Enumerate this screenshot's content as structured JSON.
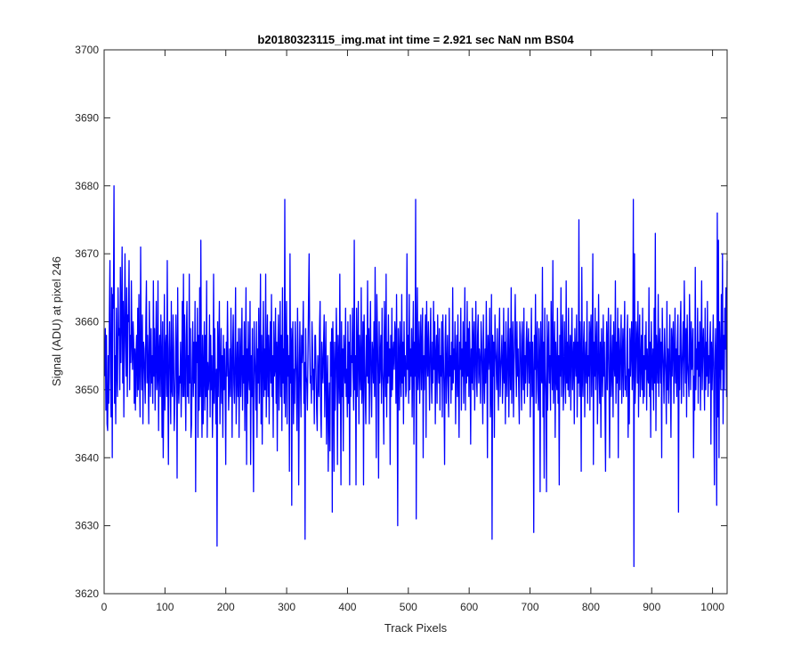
{
  "chart_data": {
    "type": "line",
    "title": "b20180323115_img.mat int time = 2.921 sec  NaN nm BS04",
    "xlabel": "Track Pixels",
    "ylabel": "Signal (ADU) at pixel 246",
    "xlim": [
      0,
      1024
    ],
    "ylim": [
      3620,
      3700
    ],
    "xticks": [
      0,
      100,
      200,
      300,
      400,
      500,
      600,
      700,
      800,
      900,
      1000
    ],
    "yticks": [
      3620,
      3630,
      3640,
      3650,
      3660,
      3670,
      3680,
      3690,
      3700
    ],
    "grid": false,
    "legend": "none",
    "series": [
      {
        "color": "#0000ff",
        "x_start": 1,
        "x_step": 1,
        "values": [
          3652,
          3659,
          3647,
          3658,
          3645,
          3644,
          3655,
          3648,
          3661,
          3669,
          3652,
          3646,
          3665,
          3640,
          3664,
          3662,
          3680,
          3648,
          3655,
          3645,
          3662,
          3653,
          3649,
          3665,
          3658,
          3659,
          3650,
          3668,
          3654,
          3661,
          3671,
          3651,
          3663,
          3646,
          3659,
          3670,
          3657,
          3652,
          3665,
          3649,
          3661,
          3660,
          3669,
          3650,
          3658,
          3654,
          3666,
          3657,
          3653,
          3660,
          3657,
          3648,
          3656,
          3647,
          3655,
          3658,
          3649,
          3662,
          3650,
          3664,
          3653,
          3646,
          3671,
          3655,
          3650,
          3661,
          3645,
          3657,
          3656,
          3652,
          3648,
          3660,
          3666,
          3651,
          3658,
          3653,
          3645,
          3663,
          3655,
          3649,
          3659,
          3651,
          3655,
          3648,
          3666,
          3652,
          3659,
          3647,
          3654,
          3663,
          3650,
          3652,
          3666,
          3644,
          3655,
          3658,
          3649,
          3661,
          3655,
          3643,
          3660,
          3640,
          3650,
          3664,
          3647,
          3656,
          3658,
          3649,
          3669,
          3651,
          3639,
          3656,
          3660,
          3652,
          3645,
          3663,
          3650,
          3649,
          3661,
          3656,
          3644,
          3648,
          3652,
          3661,
          3655,
          3637,
          3665,
          3651,
          3648,
          3652,
          3651,
          3657,
          3646,
          3652,
          3663,
          3649,
          3667,
          3649,
          3661,
          3652,
          3644,
          3658,
          3663,
          3649,
          3655,
          3648,
          3667,
          3651,
          3659,
          3643,
          3645,
          3654,
          3660,
          3649,
          3657,
          3651,
          3663,
          3635,
          3657,
          3654,
          3662,
          3643,
          3658,
          3647,
          3665,
          3649,
          3672,
          3651,
          3643,
          3658,
          3645,
          3653,
          3660,
          3647,
          3658,
          3649,
          3666,
          3643,
          3654,
          3650,
          3652,
          3661,
          3646,
          3658,
          3650,
          3655,
          3643,
          3649,
          3667,
          3648,
          3659,
          3652,
          3645,
          3653,
          3627,
          3660,
          3649,
          3656,
          3663,
          3645,
          3652,
          3659,
          3648,
          3655,
          3643,
          3658,
          3650,
          3656,
          3651,
          3639,
          3657,
          3652,
          3663,
          3655,
          3647,
          3651,
          3656,
          3649,
          3662,
          3654,
          3643,
          3656,
          3661,
          3651,
          3648,
          3655,
          3665,
          3645,
          3652,
          3657,
          3649,
          3659,
          3643,
          3653,
          3659,
          3649,
          3654,
          3662,
          3647,
          3655,
          3651,
          3660,
          3644,
          3654,
          3665,
          3639,
          3656,
          3648,
          3660,
          3652,
          3650,
          3663,
          3639,
          3655,
          3649,
          3659,
          3647,
          3635,
          3660,
          3655,
          3652,
          3647,
          3660,
          3643,
          3656,
          3651,
          3662,
          3648,
          3655,
          3667,
          3645,
          3658,
          3642,
          3654,
          3663,
          3649,
          3656,
          3650,
          3667,
          3646,
          3654,
          3661,
          3649,
          3658,
          3645,
          3655,
          3660,
          3651,
          3664,
          3649,
          3655,
          3643,
          3660,
          3652,
          3653,
          3662,
          3648,
          3657,
          3641,
          3656,
          3661,
          3647,
          3654,
          3663,
          3649,
          3658,
          3644,
          3665,
          3651,
          3656,
          3648,
          3678,
          3646,
          3654,
          3663,
          3645,
          3658,
          3652,
          3655,
          3638,
          3670,
          3651,
          3659,
          3633,
          3657,
          3660,
          3645,
          3653,
          3648,
          3660,
          3655,
          3651,
          3644,
          3662,
          3655,
          3636,
          3650,
          3660,
          3652,
          3646,
          3658,
          3654,
          3657,
          3663,
          3648,
          3654,
          3628,
          3659,
          3652,
          3651,
          3647,
          3655,
          3663,
          3670,
          3657,
          3651,
          3652,
          3648,
          3660,
          3656,
          3650,
          3653,
          3645,
          3658,
          3658,
          3652,
          3647,
          3644,
          3655,
          3651,
          3649,
          3659,
          3663,
          3647,
          3643,
          3657,
          3653,
          3651,
          3657,
          3661,
          3646,
          3653,
          3660,
          3642,
          3650,
          3655,
          3638,
          3647,
          3651,
          3641,
          3657,
          3652,
          3659,
          3632,
          3660,
          3653,
          3638,
          3657,
          3647,
          3652,
          3662,
          3655,
          3639,
          3658,
          3654,
          3648,
          3667,
          3652,
          3636,
          3660,
          3649,
          3656,
          3641,
          3658,
          3654,
          3651,
          3662,
          3649,
          3653,
          3646,
          3660,
          3648,
          3657,
          3636,
          3661,
          3649,
          3655,
          3654,
          3662,
          3652,
          3647,
          3672,
          3650,
          3655,
          3636,
          3662,
          3649,
          3656,
          3663,
          3645,
          3658,
          3653,
          3650,
          3665,
          3648,
          3652,
          3660,
          3636,
          3661,
          3655,
          3649,
          3645,
          3658,
          3652,
          3666,
          3651,
          3659,
          3645,
          3656,
          3663,
          3651,
          3646,
          3657,
          3655,
          3651,
          3660,
          3649,
          3668,
          3654,
          3640,
          3664,
          3658,
          3652,
          3637,
          3660,
          3651,
          3655,
          3658,
          3648,
          3662,
          3653,
          3650,
          3642,
          3663,
          3655,
          3649,
          3667,
          3646,
          3657,
          3651,
          3661,
          3652,
          3656,
          3639,
          3658,
          3649,
          3662,
          3650,
          3655,
          3657,
          3653,
          3660,
          3658,
          3648,
          3664,
          3652,
          3630,
          3659,
          3655,
          3647,
          3660,
          3653,
          3649,
          3664,
          3651,
          3657,
          3645,
          3660,
          3652,
          3655,
          3649,
          3650,
          3670,
          3653,
          3658,
          3648,
          3664,
          3650,
          3656,
          3652,
          3659,
          3646,
          3655,
          3663,
          3642,
          3657,
          3652,
          3678,
          3631,
          3657,
          3665,
          3650,
          3653,
          3660,
          3648,
          3655,
          3661,
          3650,
          3656,
          3662,
          3640,
          3655,
          3650,
          3657,
          3661,
          3643,
          3663,
          3655,
          3652,
          3660,
          3654,
          3647,
          3656,
          3662,
          3652,
          3648,
          3657,
          3651,
          3663,
          3653,
          3660,
          3645,
          3655,
          3658,
          3648,
          3661,
          3654,
          3651,
          3659,
          3647,
          3655,
          3652,
          3660,
          3646,
          3661,
          3655,
          3650,
          3639,
          3657,
          3661,
          3648,
          3653,
          3658,
          3651,
          3646,
          3662,
          3652,
          3655,
          3648,
          3657,
          3650,
          3665,
          3651,
          3656,
          3653,
          3660,
          3645,
          3654,
          3658,
          3649,
          3661,
          3651,
          3643,
          3657,
          3653,
          3662,
          3647,
          3656,
          3652,
          3660,
          3648,
          3655,
          3665,
          3647,
          3657,
          3651,
          3663,
          3652,
          3659,
          3649,
          3660,
          3654,
          3642,
          3656,
          3651,
          3662,
          3650,
          3657,
          3660,
          3647,
          3655,
          3663,
          3652,
          3649,
          3658,
          3661,
          3651,
          3656,
          3654,
          3648,
          3660,
          3657,
          3652,
          3645,
          3661,
          3653,
          3648,
          3656,
          3651,
          3663,
          3655,
          3640,
          3658,
          3653,
          3655,
          3662,
          3646,
          3650,
          3664,
          3628,
          3658,
          3652,
          3657,
          3643,
          3661,
          3656,
          3654,
          3650,
          3659,
          3652,
          3647,
          3657,
          3662,
          3649,
          3653,
          3655,
          3658,
          3648,
          3652,
          3662,
          3651,
          3657,
          3645,
          3660,
          3653,
          3649,
          3656,
          3662,
          3646,
          3654,
          3659,
          3650,
          3665,
          3648,
          3656,
          3660,
          3646,
          3653,
          3658,
          3664,
          3655,
          3649,
          3660,
          3652,
          3656,
          3650,
          3645,
          3660,
          3658,
          3652,
          3647,
          3660,
          3654,
          3650,
          3662,
          3648,
          3655,
          3651,
          3657,
          3660,
          3649,
          3656,
          3659,
          3651,
          3657,
          3646,
          3655,
          3662,
          3649,
          3657,
          3652,
          3629,
          3658,
          3653,
          3664,
          3648,
          3656,
          3660,
          3650,
          3647,
          3659,
          3655,
          3635,
          3660,
          3652,
          3651,
          3668,
          3646,
          3657,
          3637,
          3662,
          3653,
          3649,
          3635,
          3661,
          3647,
          3656,
          3660,
          3651,
          3655,
          3647,
          3663,
          3656,
          3650,
          3669,
          3648,
          3654,
          3660,
          3643,
          3657,
          3652,
          3650,
          3662,
          3648,
          3655,
          3636,
          3658,
          3652,
          3665,
          3649,
          3656,
          3661,
          3647,
          3651,
          3660,
          3653,
          3648,
          3666,
          3651,
          3657,
          3650,
          3662,
          3649,
          3655,
          3658,
          3647,
          3656,
          3662,
          3650,
          3654,
          3657,
          3645,
          3659,
          3655,
          3652,
          3661,
          3646,
          3657,
          3651,
          3675,
          3649,
          3660,
          3655,
          3638,
          3668,
          3652,
          3649,
          3657,
          3660,
          3646,
          3654,
          3657,
          3651,
          3663,
          3648,
          3655,
          3652,
          3660,
          3647,
          3658,
          3661,
          3649,
          3655,
          3670,
          3639,
          3657,
          3652,
          3662,
          3650,
          3656,
          3660,
          3645,
          3651,
          3664,
          3653,
          3648,
          3657,
          3643,
          3659,
          3654,
          3649,
          3661,
          3652,
          3657,
          3648,
          3638,
          3654,
          3660,
          3650,
          3657,
          3662,
          3651,
          3640,
          3655,
          3661,
          3649,
          3653,
          3658,
          3646,
          3660,
          3654,
          3652,
          3666,
          3648,
          3657,
          3651,
          3662,
          3640,
          3659,
          3655,
          3650,
          3657,
          3661,
          3648,
          3654,
          3659,
          3649,
          3656,
          3663,
          3650,
          3652,
          3649,
          3657,
          3661,
          3643,
          3653,
          3645,
          3659,
          3652,
          3656,
          3660,
          3650,
          3654,
          3678,
          3624,
          3670,
          3648,
          3652,
          3660,
          3657,
          3651,
          3663,
          3646,
          3656,
          3661,
          3649,
          3654,
          3658,
          3650,
          3662,
          3648,
          3655,
          3649,
          3658,
          3653,
          3660,
          3647,
          3656,
          3652,
          3651,
          3665,
          3649,
          3657,
          3643,
          3660,
          3654,
          3650,
          3656,
          3647,
          3662,
          3651,
          3673,
          3644,
          3658,
          3655,
          3651,
          3664,
          3649,
          3655,
          3659,
          3651,
          3657,
          3640,
          3662,
          3656,
          3653,
          3648,
          3659,
          3655,
          3652,
          3645,
          3663,
          3650,
          3656,
          3648,
          3654,
          3661,
          3651,
          3643,
          3659,
          3652,
          3657,
          3660,
          3648,
          3654,
          3662,
          3651,
          3656,
          3649,
          3657,
          3661,
          3632,
          3655,
          3650,
          3659,
          3663,
          3648,
          3653,
          3656,
          3660,
          3649,
          3666,
          3657,
          3651,
          3659,
          3646,
          3661,
          3654,
          3652,
          3649,
          3664,
          3657,
          3650,
          3660,
          3653,
          3655,
          3659,
          3640,
          3652,
          3647,
          3668,
          3650,
          3656,
          3653,
          3662,
          3648,
          3657,
          3652,
          3660,
          3647,
          3655,
          3666,
          3650,
          3656,
          3659,
          3654,
          3647,
          3662,
          3650,
          3657,
          3652,
          3663,
          3649,
          3655,
          3651,
          3657,
          3660,
          3642,
          3657,
          3650,
          3655,
          3661,
          3651,
          3636,
          3654,
          3659,
          3653,
          3633,
          3676,
          3646,
          3672,
          3640,
          3660,
          3655,
          3650,
          3664,
          3653,
          3670,
          3645,
          3658,
          3650,
          3662,
          3656,
          3665,
          3649,
          3669
        ]
      }
    ]
  }
}
